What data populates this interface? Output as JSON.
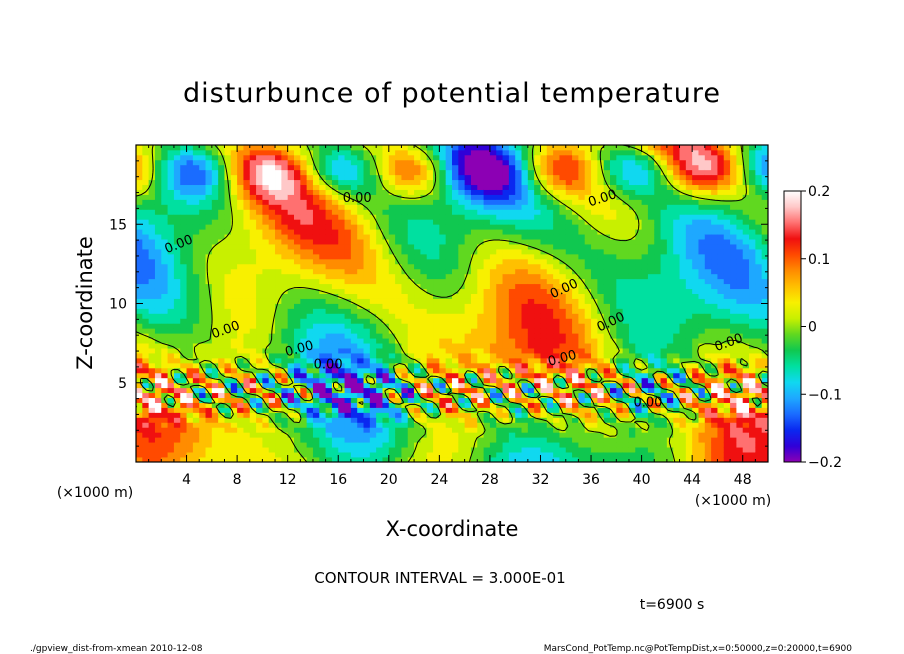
{
  "chart_data": {
    "type": "heatmap",
    "title": "disturbunce of potential temperature",
    "xlabel": "X-coordinate",
    "ylabel": "Z-coordinate",
    "x_unit": "(×1000 m)",
    "z_unit": "(×1000 m)",
    "xlim": [
      0,
      50
    ],
    "ylim": [
      0,
      20
    ],
    "x_ticks": [
      4,
      8,
      12,
      16,
      20,
      24,
      28,
      32,
      36,
      40,
      44,
      48
    ],
    "y_ticks": [
      5,
      10,
      15
    ],
    "colorbar": {
      "min": -0.2,
      "max": 0.2,
      "tick_values": [
        0.2,
        0.1,
        0,
        -0.1,
        -0.2
      ],
      "tick_labels": [
        "0.2",
        "0.1",
        "0",
        "−0.1",
        "−0.2"
      ],
      "colors": [
        "#8c00b4",
        "#3000d8",
        "#0a28f0",
        "#1a6cff",
        "#1ea8ff",
        "#10d8f0",
        "#00e0a0",
        "#10c850",
        "#60d820",
        "#c8f000",
        "#f8f000",
        "#ffc000",
        "#ff8c00",
        "#ff4a00",
        "#f01010",
        "#ff7070",
        "#ffc8c8",
        "#ffffff"
      ]
    },
    "contour_label": "0.00",
    "contour_interval_text": "CONTOUR INTERVAL = 3.000E-01",
    "time_text": "t=6900 s"
  },
  "footer": {
    "left": "./gpview_dist-from-xmean  2010-12-08",
    "right": "MarsCond_PotTemp.nc@PotTempDist,x=0:50000,z=0:20000,t=6900"
  }
}
